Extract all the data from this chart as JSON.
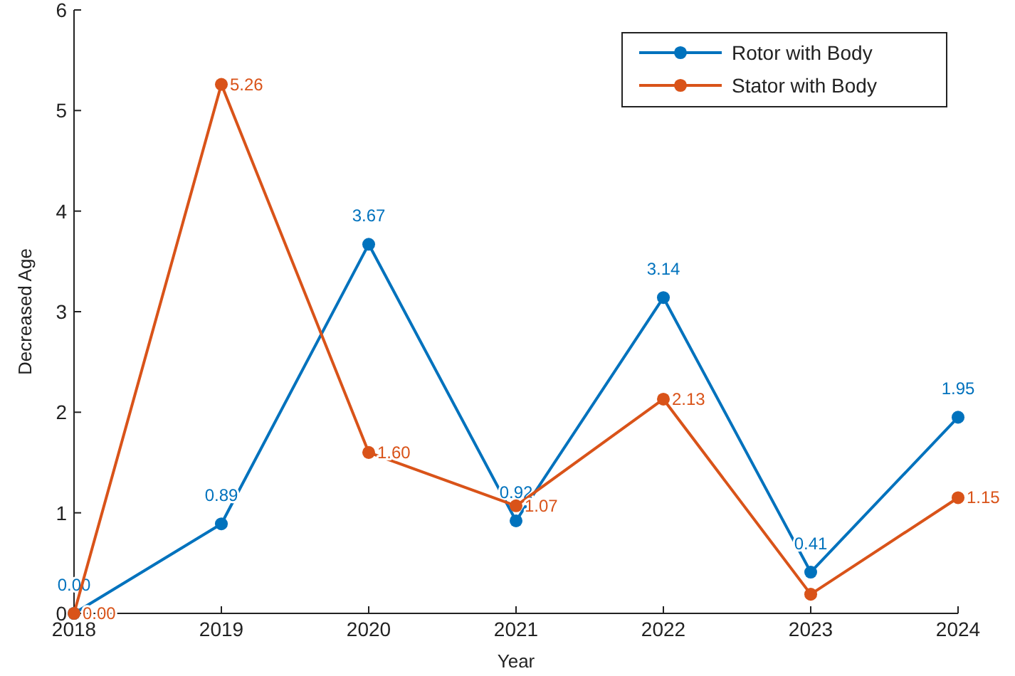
{
  "chart_data": {
    "type": "line",
    "xlabel": "Year",
    "ylabel": "Decreased Age",
    "x": [
      2018,
      2019,
      2020,
      2021,
      2022,
      2023,
      2024
    ],
    "xlim": [
      2018,
      2024
    ],
    "xticks": [
      2018,
      2019,
      2020,
      2021,
      2022,
      2023,
      2024
    ],
    "ylim": [
      0,
      6
    ],
    "yticks": [
      0,
      1,
      2,
      3,
      4,
      5,
      6
    ],
    "marker": "circle",
    "legend": "top right",
    "grid": false,
    "series": [
      {
        "name": "Rotor with Body",
        "color": "#0072bd",
        "values": [
          0,
          0.89,
          3.67,
          0.92,
          3.14,
          0.41,
          1.95
        ],
        "value_labels": [
          "0.00",
          "0.89",
          "3.67",
          "0.92",
          "3.14",
          "0.41",
          "1.95"
        ]
      },
      {
        "name": "Stator with Body",
        "color": "#d95319",
        "values": [
          0,
          5.26,
          1.6,
          1.07,
          2.13,
          0.19,
          1.15
        ],
        "value_labels": [
          "0.00",
          "5.26",
          "1.60",
          "1.07",
          "2.13",
          null,
          "1.15"
        ]
      }
    ]
  }
}
